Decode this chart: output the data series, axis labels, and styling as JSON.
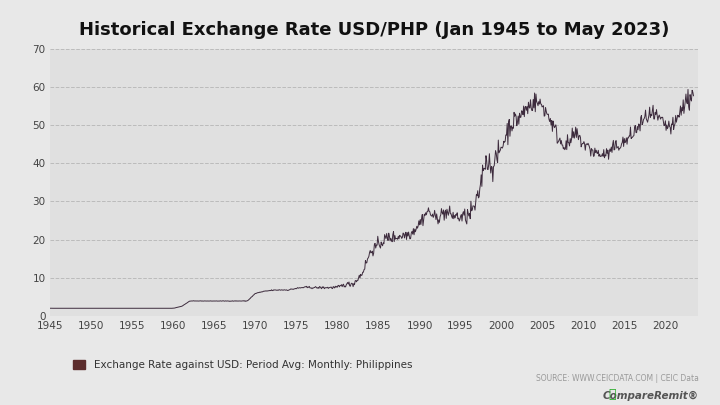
{
  "title": "Historical Exchange Rate USD/PHP (Jan 1945 to May 2023)",
  "legend_label": "Exchange Rate against USD: Period Avg: Monthly: Philippines",
  "source_text": "SOURCE: WWW.CEICDATA.COM | CEIC Data",
  "line_color": "#3d2b3d",
  "legend_square_color": "#5c2d2d",
  "background_color": "#e8e8e8",
  "plot_bg_color": "#e0e0e0",
  "xlim": [
    1945,
    2024
  ],
  "ylim": [
    0,
    70
  ],
  "yticks": [
    0,
    10,
    20,
    30,
    40,
    50,
    60,
    70
  ],
  "xticks": [
    1945,
    1950,
    1955,
    1960,
    1965,
    1970,
    1975,
    1980,
    1985,
    1990,
    1995,
    2000,
    2005,
    2010,
    2015,
    2020
  ],
  "data_years": [
    1945.0,
    1946.0,
    1947.0,
    1948.0,
    1949.0,
    1950.0,
    1951.0,
    1952.0,
    1953.0,
    1954.0,
    1955.0,
    1956.0,
    1957.0,
    1958.0,
    1959.0,
    1960.0,
    1961.0,
    1962.0,
    1963.0,
    1964.0,
    1965.0,
    1966.0,
    1967.0,
    1968.0,
    1969.0,
    1970.0,
    1971.0,
    1972.0,
    1973.0,
    1974.0,
    1975.0,
    1976.0,
    1977.0,
    1978.0,
    1979.0,
    1980.0,
    1981.0,
    1982.0,
    1983.0,
    1984.0,
    1985.0,
    1986.0,
    1987.0,
    1988.0,
    1989.0,
    1990.0,
    1991.0,
    1992.0,
    1993.0,
    1994.0,
    1995.0,
    1996.0,
    1997.0,
    1998.0,
    1999.0,
    2000.0,
    2001.0,
    2002.0,
    2003.0,
    2004.0,
    2005.0,
    2006.0,
    2007.0,
    2008.0,
    2009.0,
    2010.0,
    2011.0,
    2012.0,
    2013.0,
    2014.0,
    2015.0,
    2016.0,
    2017.0,
    2018.0,
    2019.0,
    2020.0,
    2021.0,
    2022.0,
    2023.4
  ],
  "data_values": [
    2.0,
    2.0,
    2.0,
    2.0,
    2.0,
    2.0,
    2.0,
    2.0,
    2.0,
    2.0,
    2.0,
    2.0,
    2.0,
    2.0,
    2.0,
    2.0,
    2.5,
    3.9,
    3.9,
    3.9,
    3.9,
    3.9,
    3.9,
    3.9,
    3.9,
    5.9,
    6.4,
    6.7,
    6.8,
    6.8,
    7.2,
    7.5,
    7.4,
    7.4,
    7.4,
    7.5,
    8.2,
    8.5,
    11.1,
    16.7,
    18.6,
    20.4,
    20.6,
    21.1,
    21.7,
    24.3,
    27.5,
    25.5,
    27.1,
    26.4,
    25.7,
    26.2,
    29.5,
    40.9,
    39.1,
    44.2,
    50.0,
    51.6,
    54.2,
    56.2,
    55.1,
    51.3,
    46.2,
    44.5,
    47.7,
    45.1,
    43.3,
    42.2,
    42.4,
    44.4,
    45.5,
    47.5,
    50.4,
    52.7,
    51.8,
    49.6,
    49.2,
    54.5,
    58.5
  ],
  "noise_scale_years": [
    1945.0,
    1955.0,
    1965.0,
    1970.0,
    1975.0,
    1980.0,
    1983.0,
    1985.0,
    1990.0,
    1995.0,
    1998.0,
    2000.0,
    2005.0,
    2010.0,
    2015.0,
    2020.0,
    2023.4
  ],
  "noise_scale_values": [
    0.01,
    0.01,
    0.02,
    0.05,
    0.1,
    0.2,
    0.5,
    0.8,
    0.8,
    1.0,
    1.5,
    1.5,
    1.2,
    1.0,
    1.0,
    1.2,
    1.5
  ]
}
